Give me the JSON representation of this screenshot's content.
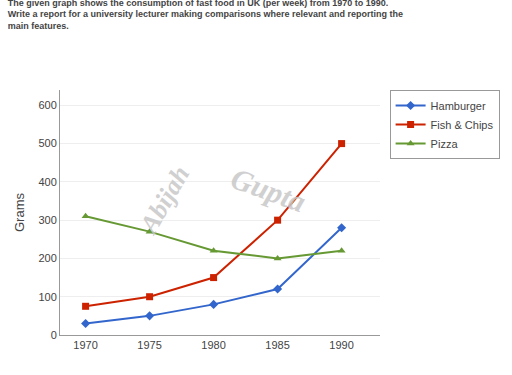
{
  "chart_data": {
    "type": "line",
    "title": "The given graph shows the consumption of fast food in UK (per week) from 1970 to 1990.",
    "subtitle": "Write a report for a university lecturer making comparisons where relevant and reporting the\nmain features.",
    "x": [
      1970,
      1975,
      1980,
      1985,
      1990
    ],
    "series": [
      {
        "name": "Hamburger",
        "color": "#3366CC",
        "marker": "diamond",
        "values": [
          30,
          50,
          80,
          120,
          280
        ]
      },
      {
        "name": "Fish & Chips",
        "color": "#CC2200",
        "marker": "square",
        "values": [
          75,
          100,
          150,
          300,
          500
        ]
      },
      {
        "name": "Pizza",
        "color": "#669933",
        "marker": "triangle-up",
        "values": [
          310,
          270,
          220,
          200,
          220
        ]
      }
    ],
    "ylabel": "Grams",
    "xlim": [
      1968,
      1993
    ],
    "xticks": [
      1970,
      1975,
      1980,
      1985,
      1990
    ],
    "ylim": [
      0,
      640
    ],
    "yticks": [
      0,
      100,
      200,
      300,
      400,
      500,
      600
    ],
    "grid": true,
    "legend": "right",
    "annotations": [
      {
        "text": "Abijah",
        "color": "#c8c8c8"
      },
      {
        "text": "Gupta",
        "color": "#c8c8c8"
      }
    ]
  }
}
